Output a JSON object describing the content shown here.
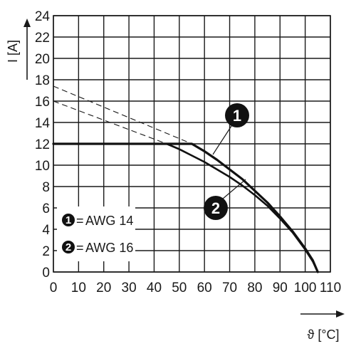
{
  "chart_data": {
    "type": "line",
    "xlabel": "ϑ [°C]",
    "ylabel": "I [A]",
    "xlim": [
      0,
      110
    ],
    "ylim": [
      0,
      24
    ],
    "x_ticks": [
      0,
      10,
      20,
      30,
      40,
      50,
      60,
      70,
      80,
      90,
      100,
      110
    ],
    "y_ticks": [
      0,
      2,
      4,
      6,
      8,
      10,
      12,
      14,
      16,
      18,
      20,
      22,
      24
    ],
    "grid": true,
    "legend_position": "lower-left",
    "series": [
      {
        "name": "AWG 14",
        "badge": "1",
        "x": [
          0,
          55,
          60,
          65,
          70,
          75,
          80,
          85,
          90,
          95,
          100,
          103,
          105
        ],
        "y": [
          12,
          12,
          11.3,
          10.5,
          9.6,
          8.7,
          7.6,
          6.5,
          5.2,
          3.8,
          2.2,
          1.1,
          0
        ],
        "extrapolated": {
          "x": [
            0,
            55
          ],
          "y": [
            17.4,
            12
          ]
        }
      },
      {
        "name": "AWG 16",
        "badge": "2",
        "x": [
          0,
          45,
          50,
          55,
          60,
          65,
          70,
          75,
          80,
          85,
          90,
          95,
          100,
          103,
          105
        ],
        "y": [
          12,
          12,
          11.5,
          10.9,
          10.3,
          9.6,
          8.9,
          8.1,
          7.2,
          6.2,
          5.0,
          3.7,
          2.1,
          1.0,
          0
        ],
        "extrapolated": {
          "x": [
            0,
            45
          ],
          "y": [
            16,
            12
          ]
        }
      }
    ]
  }
}
